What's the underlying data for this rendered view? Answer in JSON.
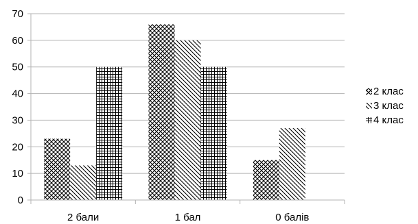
{
  "chart_data": {
    "type": "bar",
    "categories": [
      "2 бали",
      "1 бал",
      "0 балів"
    ],
    "series": [
      {
        "name": "2 клас",
        "values": [
          23,
          66,
          15
        ],
        "pattern": "crosshatch-diagonal"
      },
      {
        "name": "3 клас",
        "values": [
          13,
          60,
          27
        ],
        "pattern": "diagonal-down"
      },
      {
        "name": "4 клас",
        "values": [
          50,
          50,
          0
        ],
        "pattern": "grid"
      }
    ],
    "ylim": [
      0,
      70
    ],
    "yticks": [
      0,
      10,
      20,
      30,
      40,
      50,
      60,
      70
    ],
    "grid": true,
    "legend_position": "right",
    "colors": {
      "ink": "#000000",
      "grid": "#b3b3b3",
      "axis": "#b3b3b3"
    }
  }
}
